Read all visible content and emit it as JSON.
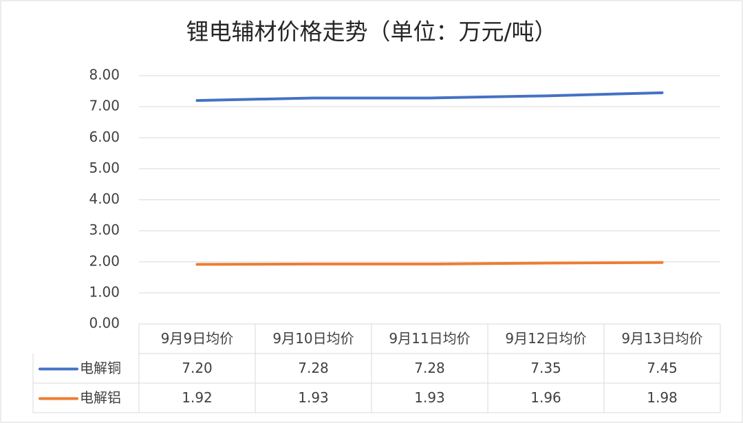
{
  "chart_data": {
    "type": "line",
    "title": "锂电辅材价格走势（单位：万元/吨）",
    "categories": [
      "9月9日均价",
      "9月10日均价",
      "9月11日均价",
      "9月12日均价",
      "9月13日均价"
    ],
    "series": [
      {
        "name": "电解铜",
        "color": "#4472c4",
        "values": [
          7.2,
          7.28,
          7.28,
          7.35,
          7.45
        ],
        "value_labels": [
          "7.20",
          "7.28",
          "7.28",
          "7.35",
          "7.45"
        ]
      },
      {
        "name": "电解铝",
        "color": "#ed7d31",
        "values": [
          1.92,
          1.93,
          1.93,
          1.96,
          1.98
        ],
        "value_labels": [
          "1.92",
          "1.93",
          "1.93",
          "1.96",
          "1.98"
        ]
      }
    ],
    "ylim": [
      0,
      8
    ],
    "yticks": [
      {
        "value": 0,
        "label": "0.00"
      },
      {
        "value": 1,
        "label": "1.00"
      },
      {
        "value": 2,
        "label": "2.00"
      },
      {
        "value": 3,
        "label": "3.00"
      },
      {
        "value": 4,
        "label": "4.00"
      },
      {
        "value": 5,
        "label": "5.00"
      },
      {
        "value": 6,
        "label": "6.00"
      },
      {
        "value": 7,
        "label": "7.00"
      },
      {
        "value": 8,
        "label": "8.00"
      }
    ],
    "grid": true
  }
}
